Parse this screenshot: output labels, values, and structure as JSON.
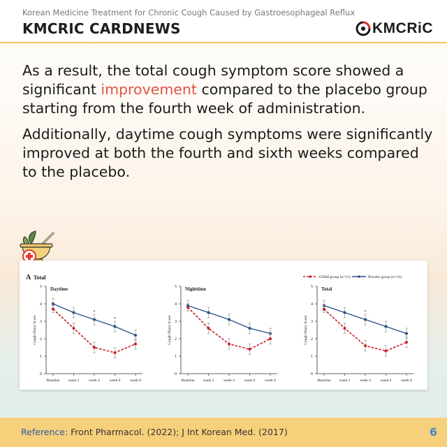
{
  "header": {
    "subtitle": "Korean Medicine Treatment for Chronic Cough Caused by Gastroesophageal Reflux",
    "title": "KMCRIC CARDNEWS",
    "logo_text": "KMCRiC"
  },
  "body": {
    "p1_before": "As a result, the total cough symptom score showed a significant ",
    "p1_highlight": "improvement",
    "p1_after": " compared to the placebo group starting from the fourth week of administration.",
    "p2": "Additionally, daytime cough symptoms were significantly improved at both the fourth and sixth weeks compared to the placebo.",
    "highlight_color": "#e05545"
  },
  "icons": [
    "herbal-bowl-icon",
    "medical-cross-icon",
    "kmcric-logo-icon"
  ],
  "chart_data": {
    "panel_label": "A",
    "panel_title": "Total",
    "legend": [
      "OJSM group (n=15)",
      "Placebo group (n=15)"
    ],
    "ylabel": "Cough Diary Score",
    "ylim": [
      0,
      5
    ],
    "yticks": [
      "0",
      "1",
      "2",
      "3",
      "4",
      "5"
    ],
    "categories": [
      "Baseline",
      "week 2",
      "week 4",
      "week 6",
      "week 8"
    ],
    "series_colors": [
      "#c8202a",
      "#2b4e86"
    ],
    "charts": [
      {
        "type": "line",
        "title": "Daytime",
        "series": [
          {
            "name": "OJSM group (n=15)",
            "values": [
              3.7,
              2.6,
              1.5,
              1.2,
              1.7
            ],
            "err": [
              0.2,
              0.3,
              0.3,
              0.3,
              0.3
            ]
          },
          {
            "name": "Placebo group (n=15)",
            "values": [
              4.0,
              3.5,
              3.1,
              2.7,
              2.2
            ],
            "err": [
              0.3,
              0.3,
              0.3,
              0.3,
              0.3
            ]
          }
        ],
        "significant": [
          false,
          false,
          true,
          true,
          false
        ]
      },
      {
        "type": "line",
        "title": "Nighttime",
        "series": [
          {
            "name": "OJSM group (n=15)",
            "values": [
              3.8,
              2.6,
              1.7,
              1.4,
              2.0
            ],
            "err": [
              0.2,
              0.3,
              0.3,
              0.3,
              0.3
            ]
          },
          {
            "name": "Placebo group (n=15)",
            "values": [
              3.9,
              3.5,
              3.1,
              2.6,
              2.3
            ],
            "err": [
              0.3,
              0.3,
              0.3,
              0.3,
              0.3
            ]
          }
        ],
        "significant": [
          false,
          false,
          false,
          false,
          false
        ]
      },
      {
        "type": "line",
        "title": "Total",
        "series": [
          {
            "name": "OJSM group (n=15)",
            "values": [
              3.7,
              2.6,
              1.6,
              1.3,
              1.8
            ],
            "err": [
              0.2,
              0.3,
              0.3,
              0.3,
              0.3
            ]
          },
          {
            "name": "Placebo group (n=15)",
            "values": [
              3.9,
              3.5,
              3.1,
              2.7,
              2.3
            ],
            "err": [
              0.3,
              0.3,
              0.3,
              0.3,
              0.3
            ]
          }
        ],
        "significant": [
          false,
          false,
          true,
          false,
          false
        ]
      }
    ]
  },
  "footer": {
    "ref_label": "Reference:",
    "ref_text": " Front Pharmacol. (2022); J Int Korean Med. (2017)",
    "page": "6"
  }
}
